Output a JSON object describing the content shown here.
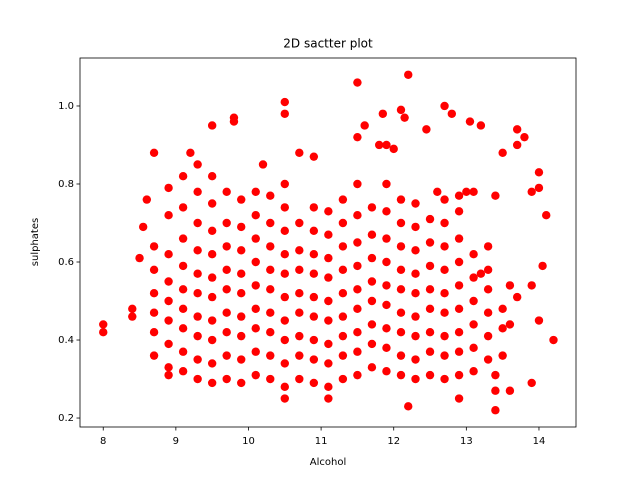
{
  "chart_data": {
    "type": "scatter",
    "title": "2D sactter plot",
    "x_label": "Alcohol",
    "y_label": "sulphates",
    "color": "#ff0000",
    "xlim": [
      7.68,
      14.51
    ],
    "ylim": [
      0.177,
      1.123
    ],
    "xticks": [
      8,
      9,
      10,
      11,
      12,
      13,
      14
    ],
    "yticks": [
      0.2,
      0.4,
      0.6,
      0.8,
      {
        "value": 1,
        "label": "1.0"
      }
    ],
    "points": [
      [
        8.0,
        0.44
      ],
      [
        8.0,
        0.42
      ],
      [
        14.2,
        0.4
      ],
      [
        14.0,
        0.45
      ],
      [
        14.05,
        0.59
      ],
      [
        14.1,
        0.72
      ],
      [
        14.0,
        0.79
      ],
      [
        14.0,
        0.83
      ],
      [
        13.9,
        0.78
      ],
      [
        13.9,
        0.29
      ],
      [
        13.7,
        0.94
      ],
      [
        13.8,
        0.92
      ],
      [
        13.7,
        0.9
      ],
      [
        13.5,
        0.88
      ],
      [
        13.4,
        0.77
      ],
      [
        13.4,
        0.22
      ],
      [
        13.4,
        0.27
      ],
      [
        13.4,
        0.31
      ],
      [
        13.6,
        0.27
      ],
      [
        13.2,
        0.95
      ],
      [
        13.05,
        0.96
      ],
      [
        12.8,
        0.98
      ],
      [
        12.7,
        1.0
      ],
      [
        12.2,
        1.08
      ],
      [
        12.1,
        0.99
      ],
      [
        12.15,
        0.97
      ],
      [
        11.5,
        1.06
      ],
      [
        11.85,
        0.98
      ],
      [
        12.45,
        0.94
      ],
      [
        9.5,
        0.95
      ],
      [
        9.8,
        0.97
      ],
      [
        9.8,
        0.96
      ],
      [
        10.5,
        1.01
      ],
      [
        10.5,
        0.98
      ],
      [
        10.9,
        0.87
      ],
      [
        10.7,
        0.88
      ],
      [
        10.2,
        0.85
      ],
      [
        8.7,
        0.88
      ],
      [
        9.2,
        0.88
      ],
      [
        9.3,
        0.85
      ],
      [
        12.2,
        0.23
      ],
      [
        11.1,
        0.25
      ],
      [
        10.5,
        0.25
      ],
      [
        12.9,
        0.25
      ],
      [
        8.9,
        0.31
      ],
      [
        8.6,
        0.76
      ],
      [
        8.4,
        0.46
      ],
      [
        8.4,
        0.48
      ],
      [
        8.5,
        0.61
      ],
      [
        8.55,
        0.69
      ],
      [
        11.5,
        0.92
      ],
      [
        11.6,
        0.95
      ],
      [
        11.8,
        0.9
      ],
      [
        11.9,
        0.9
      ],
      [
        12.0,
        0.89
      ],
      [
        13.0,
        0.78
      ],
      [
        13.1,
        0.78
      ],
      [
        12.9,
        0.77
      ],
      [
        12.6,
        0.78
      ],
      [
        13.6,
        0.54
      ],
      [
        13.3,
        0.64
      ],
      [
        13.3,
        0.58
      ],
      [
        13.5,
        0.48
      ],
      [
        13.5,
        0.43
      ],
      [
        13.7,
        0.51
      ],
      [
        13.9,
        0.54
      ],
      [
        13.6,
        0.44
      ],
      [
        13.5,
        0.36
      ],
      [
        13.2,
        0.57
      ],
      [
        8.7,
        0.36
      ],
      [
        8.7,
        0.42
      ],
      [
        8.7,
        0.47
      ],
      [
        8.7,
        0.52
      ],
      [
        8.7,
        0.58
      ],
      [
        8.7,
        0.64
      ],
      [
        8.9,
        0.33
      ],
      [
        8.9,
        0.39
      ],
      [
        8.9,
        0.45
      ],
      [
        8.9,
        0.5
      ],
      [
        8.9,
        0.55
      ],
      [
        8.9,
        0.62
      ],
      [
        8.9,
        0.72
      ],
      [
        8.9,
        0.79
      ],
      [
        9.1,
        0.32
      ],
      [
        9.1,
        0.37
      ],
      [
        9.1,
        0.43
      ],
      [
        9.1,
        0.48
      ],
      [
        9.1,
        0.53
      ],
      [
        9.1,
        0.59
      ],
      [
        9.1,
        0.66
      ],
      [
        9.1,
        0.74
      ],
      [
        9.1,
        0.82
      ],
      [
        9.3,
        0.3
      ],
      [
        9.3,
        0.35
      ],
      [
        9.3,
        0.41
      ],
      [
        9.3,
        0.46
      ],
      [
        9.3,
        0.52
      ],
      [
        9.3,
        0.57
      ],
      [
        9.3,
        0.63
      ],
      [
        9.3,
        0.7
      ],
      [
        9.3,
        0.78
      ],
      [
        9.5,
        0.29
      ],
      [
        9.5,
        0.34
      ],
      [
        9.5,
        0.4
      ],
      [
        9.5,
        0.45
      ],
      [
        9.5,
        0.51
      ],
      [
        9.5,
        0.56
      ],
      [
        9.5,
        0.62
      ],
      [
        9.5,
        0.68
      ],
      [
        9.5,
        0.75
      ],
      [
        9.5,
        0.82
      ],
      [
        9.7,
        0.3
      ],
      [
        9.7,
        0.36
      ],
      [
        9.7,
        0.42
      ],
      [
        9.7,
        0.47
      ],
      [
        9.7,
        0.53
      ],
      [
        9.7,
        0.58
      ],
      [
        9.7,
        0.64
      ],
      [
        9.7,
        0.7
      ],
      [
        9.7,
        0.78
      ],
      [
        9.9,
        0.29
      ],
      [
        9.9,
        0.35
      ],
      [
        9.9,
        0.41
      ],
      [
        9.9,
        0.46
      ],
      [
        9.9,
        0.52
      ],
      [
        9.9,
        0.57
      ],
      [
        9.9,
        0.63
      ],
      [
        9.9,
        0.69
      ],
      [
        9.9,
        0.76
      ],
      [
        10.1,
        0.31
      ],
      [
        10.1,
        0.37
      ],
      [
        10.1,
        0.43
      ],
      [
        10.1,
        0.48
      ],
      [
        10.1,
        0.54
      ],
      [
        10.1,
        0.6
      ],
      [
        10.1,
        0.66
      ],
      [
        10.1,
        0.72
      ],
      [
        10.1,
        0.78
      ],
      [
        10.3,
        0.3
      ],
      [
        10.3,
        0.36
      ],
      [
        10.3,
        0.42
      ],
      [
        10.3,
        0.47
      ],
      [
        10.3,
        0.53
      ],
      [
        10.3,
        0.58
      ],
      [
        10.3,
        0.64
      ],
      [
        10.3,
        0.7
      ],
      [
        10.3,
        0.77
      ],
      [
        10.5,
        0.28
      ],
      [
        10.5,
        0.34
      ],
      [
        10.5,
        0.4
      ],
      [
        10.5,
        0.45
      ],
      [
        10.5,
        0.51
      ],
      [
        10.5,
        0.57
      ],
      [
        10.5,
        0.62
      ],
      [
        10.5,
        0.68
      ],
      [
        10.5,
        0.74
      ],
      [
        10.5,
        0.8
      ],
      [
        10.7,
        0.3
      ],
      [
        10.7,
        0.36
      ],
      [
        10.7,
        0.41
      ],
      [
        10.7,
        0.47
      ],
      [
        10.7,
        0.52
      ],
      [
        10.7,
        0.58
      ],
      [
        10.7,
        0.63
      ],
      [
        10.7,
        0.7
      ],
      [
        10.9,
        0.29
      ],
      [
        10.9,
        0.35
      ],
      [
        10.9,
        0.4
      ],
      [
        10.9,
        0.46
      ],
      [
        10.9,
        0.51
      ],
      [
        10.9,
        0.57
      ],
      [
        10.9,
        0.62
      ],
      [
        10.9,
        0.68
      ],
      [
        10.9,
        0.74
      ],
      [
        11.1,
        0.28
      ],
      [
        11.1,
        0.34
      ],
      [
        11.1,
        0.39
      ],
      [
        11.1,
        0.45
      ],
      [
        11.1,
        0.5
      ],
      [
        11.1,
        0.56
      ],
      [
        11.1,
        0.61
      ],
      [
        11.1,
        0.67
      ],
      [
        11.1,
        0.73
      ],
      [
        11.3,
        0.3
      ],
      [
        11.3,
        0.36
      ],
      [
        11.3,
        0.41
      ],
      [
        11.3,
        0.46
      ],
      [
        11.3,
        0.52
      ],
      [
        11.3,
        0.58
      ],
      [
        11.3,
        0.64
      ],
      [
        11.3,
        0.7
      ],
      [
        11.3,
        0.76
      ],
      [
        11.5,
        0.31
      ],
      [
        11.5,
        0.37
      ],
      [
        11.5,
        0.42
      ],
      [
        11.5,
        0.48
      ],
      [
        11.5,
        0.53
      ],
      [
        11.5,
        0.59
      ],
      [
        11.5,
        0.65
      ],
      [
        11.5,
        0.72
      ],
      [
        11.5,
        0.8
      ],
      [
        11.7,
        0.33
      ],
      [
        11.7,
        0.39
      ],
      [
        11.7,
        0.44
      ],
      [
        11.7,
        0.5
      ],
      [
        11.7,
        0.55
      ],
      [
        11.7,
        0.61
      ],
      [
        11.7,
        0.67
      ],
      [
        11.7,
        0.74
      ],
      [
        11.9,
        0.32
      ],
      [
        11.9,
        0.38
      ],
      [
        11.9,
        0.43
      ],
      [
        11.9,
        0.49
      ],
      [
        11.9,
        0.54
      ],
      [
        11.9,
        0.6
      ],
      [
        11.9,
        0.66
      ],
      [
        11.9,
        0.73
      ],
      [
        11.9,
        0.8
      ],
      [
        12.1,
        0.31
      ],
      [
        12.1,
        0.36
      ],
      [
        12.1,
        0.42
      ],
      [
        12.1,
        0.47
      ],
      [
        12.1,
        0.53
      ],
      [
        12.1,
        0.58
      ],
      [
        12.1,
        0.64
      ],
      [
        12.1,
        0.7
      ],
      [
        12.1,
        0.76
      ],
      [
        12.3,
        0.3
      ],
      [
        12.3,
        0.35
      ],
      [
        12.3,
        0.41
      ],
      [
        12.3,
        0.46
      ],
      [
        12.3,
        0.52
      ],
      [
        12.3,
        0.57
      ],
      [
        12.3,
        0.63
      ],
      [
        12.3,
        0.69
      ],
      [
        12.3,
        0.75
      ],
      [
        12.5,
        0.31
      ],
      [
        12.5,
        0.37
      ],
      [
        12.5,
        0.42
      ],
      [
        12.5,
        0.48
      ],
      [
        12.5,
        0.53
      ],
      [
        12.5,
        0.59
      ],
      [
        12.5,
        0.65
      ],
      [
        12.5,
        0.71
      ],
      [
        12.7,
        0.3
      ],
      [
        12.7,
        0.36
      ],
      [
        12.7,
        0.41
      ],
      [
        12.7,
        0.47
      ],
      [
        12.7,
        0.52
      ],
      [
        12.7,
        0.58
      ],
      [
        12.7,
        0.64
      ],
      [
        12.7,
        0.7
      ],
      [
        12.7,
        0.76
      ],
      [
        12.9,
        0.31
      ],
      [
        12.9,
        0.37
      ],
      [
        12.9,
        0.42
      ],
      [
        12.9,
        0.48
      ],
      [
        12.9,
        0.54
      ],
      [
        12.9,
        0.6
      ],
      [
        12.9,
        0.66
      ],
      [
        12.9,
        0.73
      ],
      [
        13.1,
        0.32
      ],
      [
        13.1,
        0.38
      ],
      [
        13.1,
        0.44
      ],
      [
        13.1,
        0.5
      ],
      [
        13.1,
        0.56
      ],
      [
        13.1,
        0.62
      ],
      [
        13.3,
        0.35
      ],
      [
        13.3,
        0.41
      ],
      [
        13.3,
        0.47
      ],
      [
        13.3,
        0.53
      ]
    ]
  }
}
